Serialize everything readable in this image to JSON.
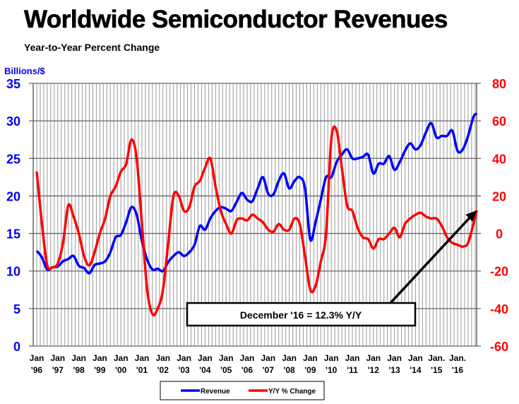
{
  "chart_data": {
    "type": "line",
    "title": "Worldwide Semiconductor Revenues",
    "subtitle": "Year-to-Year Percent Change",
    "ylabel": "Billions/$",
    "ylim": [
      0,
      35
    ],
    "y2lim": [
      -60,
      80
    ],
    "yticks": [
      "0",
      "5",
      "10",
      "15",
      "20",
      "25",
      "30",
      "35"
    ],
    "y2ticks": [
      "-60",
      "-40",
      "-20",
      "0",
      "20",
      "40",
      "60",
      "80"
    ],
    "xticks": [
      [
        "Jan",
        "'96"
      ],
      [
        "Jan",
        "'97"
      ],
      [
        "Jan",
        "'98"
      ],
      [
        "Jan",
        "'99"
      ],
      [
        "Jan",
        "'00"
      ],
      [
        "Jan",
        "'01"
      ],
      [
        "Jan",
        "'02"
      ],
      [
        "Jan",
        "'03"
      ],
      [
        "Jan",
        "'04"
      ],
      [
        "Jan",
        "'05"
      ],
      [
        "Jan",
        "'06"
      ],
      [
        "Jan",
        "'07"
      ],
      [
        "Jan",
        "'08"
      ],
      [
        "Jan",
        "'09"
      ],
      [
        "Jan",
        "'10"
      ],
      [
        "Jan",
        "'11"
      ],
      [
        "Jan",
        "'12"
      ],
      [
        "Jan",
        "'13"
      ],
      [
        "Jan",
        "'14"
      ],
      [
        "Jan.",
        "'15"
      ],
      [
        "Jan.",
        "'16"
      ]
    ],
    "grid": true,
    "legend_placement": "bottom-center",
    "annotation": "December '16 = 12.3% Y/Y",
    "x": [
      "1996-01",
      "1996-04",
      "1996-07",
      "1996-10",
      "1997-01",
      "1997-04",
      "1997-07",
      "1997-10",
      "1998-01",
      "1998-04",
      "1998-07",
      "1998-10",
      "1999-01",
      "1999-04",
      "1999-07",
      "1999-10",
      "2000-01",
      "2000-04",
      "2000-07",
      "2000-10",
      "2001-01",
      "2001-04",
      "2001-07",
      "2001-10",
      "2002-01",
      "2002-04",
      "2002-07",
      "2002-10",
      "2003-01",
      "2003-04",
      "2003-07",
      "2003-10",
      "2004-01",
      "2004-04",
      "2004-07",
      "2004-10",
      "2005-01",
      "2005-04",
      "2005-07",
      "2005-10",
      "2006-01",
      "2006-04",
      "2006-07",
      "2006-10",
      "2007-01",
      "2007-04",
      "2007-07",
      "2007-10",
      "2008-01",
      "2008-04",
      "2008-07",
      "2008-10",
      "2009-01",
      "2009-04",
      "2009-07",
      "2009-10",
      "2010-01",
      "2010-04",
      "2010-07",
      "2010-10",
      "2011-01",
      "2011-04",
      "2011-07",
      "2011-10",
      "2012-01",
      "2012-04",
      "2012-07",
      "2012-10",
      "2013-01",
      "2013-04",
      "2013-07",
      "2013-10",
      "2014-01",
      "2014-04",
      "2014-07",
      "2014-10",
      "2015-01",
      "2015-04",
      "2015-07",
      "2015-10",
      "2016-01",
      "2016-04",
      "2016-07",
      "2016-10",
      "2016-12"
    ],
    "series": [
      {
        "name": "Revenue",
        "axis": "left",
        "color": "#0000ff",
        "values": [
          12.7,
          11.8,
          10.2,
          10.5,
          10.6,
          11.3,
          11.6,
          12.0,
          10.7,
          10.4,
          9.7,
          10.8,
          11.0,
          11.3,
          12.5,
          14.5,
          14.8,
          16.5,
          18.5,
          17.5,
          14.0,
          11.5,
          10.2,
          10.3,
          10.0,
          11.2,
          12.0,
          12.5,
          12.0,
          12.5,
          13.5,
          16.0,
          15.5,
          17.0,
          18.0,
          18.5,
          18.3,
          18.0,
          19.2,
          20.4,
          19.5,
          19.3,
          21.0,
          22.5,
          20.3,
          20.2,
          22.0,
          23.0,
          21.0,
          22.0,
          22.5,
          21.0,
          14.2,
          16.5,
          19.5,
          22.5,
          22.5,
          24.5,
          25.5,
          26.2,
          25.0,
          25.0,
          25.2,
          25.5,
          23.0,
          24.3,
          24.3,
          25.3,
          23.5,
          24.5,
          26.0,
          27.0,
          26.2,
          26.8,
          28.5,
          29.7,
          27.8,
          28.0,
          28.0,
          28.7,
          26.0,
          26.2,
          28.0,
          30.5,
          31.0
        ]
      },
      {
        "name": "Y/Y % Change",
        "axis": "right",
        "color": "#ff0000",
        "values": [
          33,
          5,
          -17,
          -18,
          -16,
          -5,
          15,
          9,
          0,
          -12,
          -17,
          -10,
          0,
          8,
          20,
          25,
          33,
          37,
          50,
          40,
          5,
          -30,
          -43,
          -40,
          -30,
          -5,
          20,
          20,
          12,
          14,
          25,
          28,
          35,
          40,
          25,
          12,
          5,
          0,
          7,
          8,
          7,
          10,
          8,
          6,
          2,
          1,
          5,
          2,
          2,
          8,
          5,
          -12,
          -30,
          -28,
          -15,
          0,
          50,
          55,
          35,
          15,
          12,
          3,
          -2,
          -3,
          -8,
          -3,
          -3,
          0,
          3,
          -2,
          5,
          8,
          10,
          11,
          9,
          8,
          8,
          4,
          -2,
          -5,
          -6,
          -7,
          -5,
          5,
          12.3
        ]
      }
    ]
  }
}
